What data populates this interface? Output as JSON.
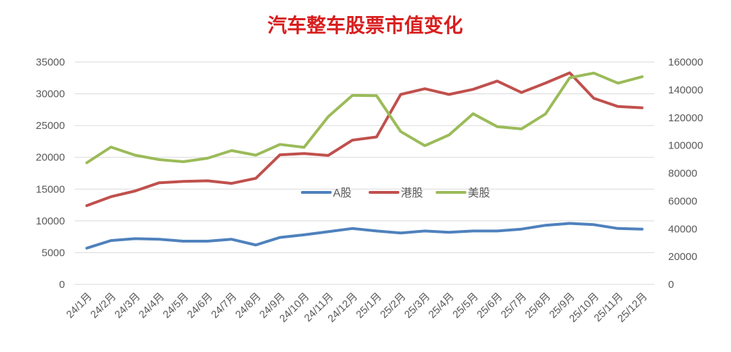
{
  "chart_data": {
    "type": "line",
    "title": "汽车整车股票市值变化",
    "x": [
      "24/1月",
      "24/2月",
      "24/3月",
      "24/4月",
      "24/5月",
      "24/6月",
      "24/7月",
      "24/8月",
      "24/9月",
      "24/10月",
      "24/11月",
      "24/12月",
      "25/1月",
      "25/2月",
      "25/3月",
      "25/4月",
      "25/5月",
      "25/6月",
      "25/7月",
      "25/8月",
      "25/9月",
      "25/10月",
      "25/11月",
      "25/12月"
    ],
    "y_left": {
      "min": 0,
      "max": 35000,
      "ticks": [
        0,
        5000,
        10000,
        15000,
        20000,
        25000,
        30000,
        35000
      ]
    },
    "y_right": {
      "min": 0,
      "max": 160000,
      "ticks": [
        0,
        20000,
        40000,
        60000,
        80000,
        100000,
        120000,
        140000,
        160000
      ]
    },
    "grid": true,
    "legend_position": "center",
    "series": [
      {
        "name": "A股",
        "axis": "left",
        "color": "#4f81bd",
        "values": [
          5700,
          6900,
          7200,
          7100,
          6800,
          6800,
          7100,
          6200,
          7400,
          7800,
          8300,
          8800,
          8400,
          8100,
          8400,
          8200,
          8400,
          8400,
          8700,
          9300,
          9600,
          9400,
          8800,
          8700
        ]
      },
      {
        "name": "港股",
        "axis": "left",
        "color": "#c0504d",
        "values": [
          12400,
          13800,
          14700,
          16000,
          16200,
          16300,
          15900,
          16700,
          20400,
          20600,
          20300,
          22700,
          23200,
          29900,
          30800,
          29900,
          30700,
          32000,
          30200,
          31700,
          33300,
          29300,
          28000,
          27800
        ]
      },
      {
        "name": "美股",
        "axis": "right",
        "color": "#9bbb59",
        "values": [
          87500,
          98800,
          93000,
          89800,
          88300,
          90800,
          96300,
          93000,
          100700,
          98600,
          120700,
          136000,
          135800,
          110000,
          99800,
          107500,
          122800,
          113500,
          111900,
          122700,
          148700,
          152100,
          144800,
          149400
        ]
      }
    ]
  }
}
